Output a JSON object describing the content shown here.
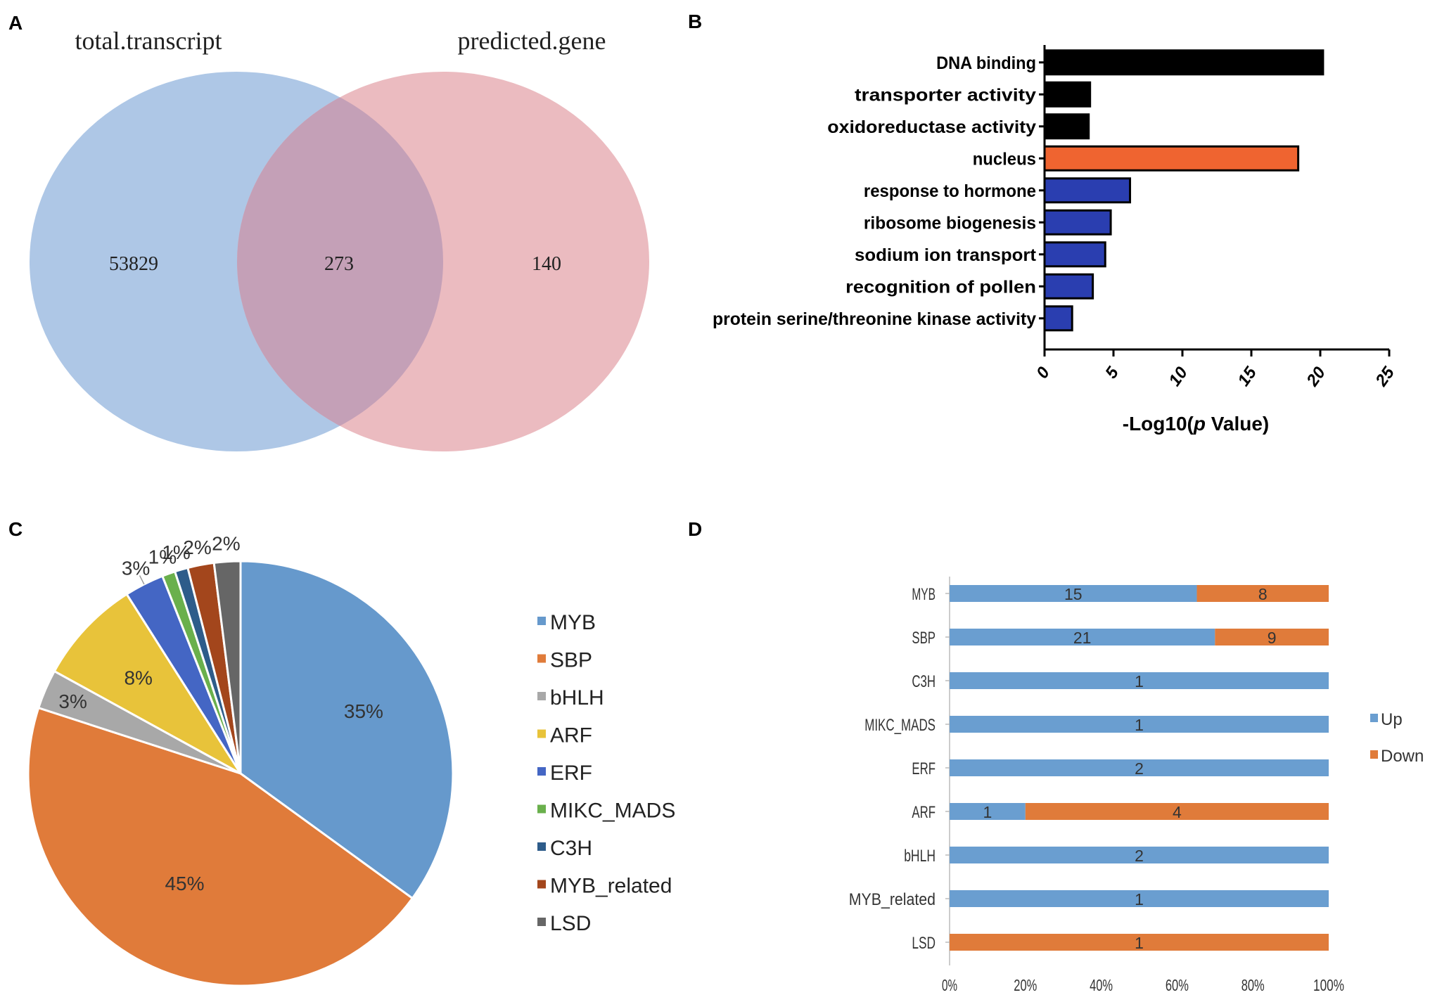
{
  "panel_letters": [
    "A",
    "B",
    "C",
    "D"
  ],
  "chart_data": [
    {
      "type": "venn",
      "panel": "A",
      "set_labels": [
        "total.transcript",
        "predicted.gene"
      ],
      "regions": {
        "left_only": "53829",
        "intersection": "273",
        "right_only": "140"
      },
      "colors": {
        "left": "#aec7e6",
        "right": "#ebbbc0",
        "overlap": "#c4a0b7"
      }
    },
    {
      "type": "bar",
      "panel": "B",
      "orientation": "horizontal",
      "categories": [
        "DNA binding",
        "transporter activity",
        "oxidoreductase activity",
        "nucleus",
        "response to hormone",
        "ribosome biogenesis",
        "sodium ion transport",
        "recognition of pollen",
        "protein serine/threonine kinase activity"
      ],
      "values": [
        20.2,
        3.3,
        3.2,
        18.4,
        6.2,
        4.8,
        4.4,
        3.5,
        2.0
      ],
      "bar_colors": [
        "#000000",
        "#000000",
        "#000000",
        "#ef6430",
        "#2a3eb0",
        "#2a3eb0",
        "#2a3eb0",
        "#2a3eb0",
        "#2a3eb0"
      ],
      "xticks": [
        "0",
        "5",
        "10",
        "15",
        "20",
        "25"
      ],
      "xlim": [
        0,
        25
      ],
      "xlabel_prefix": "-Log10(",
      "xlabel_italic": "p",
      "xlabel_suffix": " Value)"
    },
    {
      "type": "pie",
      "panel": "C",
      "labels": [
        "MYB",
        "SBP",
        "bHLH",
        "ARF",
        "ERF",
        "MIKC_MADS",
        "C3H",
        "MYB_related",
        "LSD"
      ],
      "values": [
        35,
        45,
        3,
        8,
        3,
        1,
        1,
        2,
        2
      ],
      "value_labels": [
        "35%",
        "45%",
        "3%",
        "8%",
        "3%",
        "1%",
        "1%",
        "2%",
        "2%"
      ],
      "colors": [
        "#6699cc",
        "#e07b3a",
        "#a8a8a8",
        "#e8c33a",
        "#4466c4",
        "#6ab04c",
        "#2e5c8a",
        "#a3461c",
        "#666666"
      ],
      "legend_position": "right"
    },
    {
      "type": "bar",
      "panel": "D",
      "orientation": "horizontal",
      "stacked": "percent",
      "categories": [
        "MYB",
        "SBP",
        "C3H",
        "MIKC_MADS",
        "ERF",
        "ARF",
        "bHLH",
        "MYB_related",
        "LSD"
      ],
      "series": [
        {
          "name": "Up",
          "values": [
            15,
            21,
            1,
            1,
            2,
            1,
            2,
            1,
            0
          ],
          "color": "#6a9ed0"
        },
        {
          "name": "Down",
          "values": [
            8,
            9,
            0,
            0,
            0,
            4,
            0,
            0,
            1
          ],
          "color": "#e07b3a"
        }
      ],
      "xticks": [
        "0%",
        "20%",
        "40%",
        "60%",
        "80%",
        "100%"
      ],
      "xlim": [
        0,
        100
      ],
      "legend_position": "right"
    }
  ]
}
